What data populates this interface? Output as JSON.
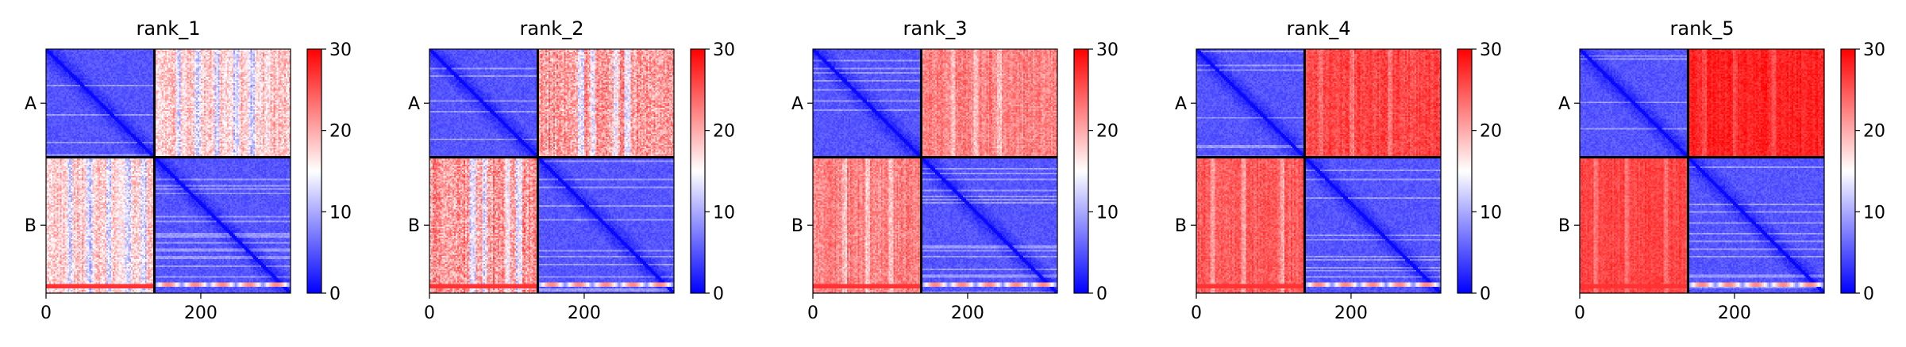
{
  "chart_data": {
    "type": "heatmap",
    "description_colormap": "bwr",
    "colormap": [
      "#0000ff",
      "#ffffff",
      "#ff0000"
    ],
    "color_range": [
      0,
      30
    ],
    "colorbar_ticks": [
      0,
      10,
      20,
      30
    ],
    "x_ticks": [
      0,
      200
    ],
    "x_range": [
      0,
      316
    ],
    "chain_boundary": 140,
    "chain_labels": [
      "A",
      "B"
    ],
    "panels": [
      {
        "title": "rank_1",
        "block_means": {
          "A_A": 4,
          "A_B": 18,
          "B_A": 18,
          "B_B": 4
        },
        "variation": 3.5,
        "columns_low": [
          30,
          55,
          80,
          105,
          125
        ]
      },
      {
        "title": "rank_2",
        "block_means": {
          "A_A": 4,
          "A_B": 21,
          "B_A": 21,
          "B_B": 4
        },
        "variation": 4,
        "columns_low": [
          55,
          70,
          100,
          115
        ]
      },
      {
        "title": "rank_3",
        "block_means": {
          "A_A": 4,
          "A_B": 22.5,
          "B_A": 22.5,
          "B_B": 4
        },
        "variation": 2.5,
        "columns_low": [
          40,
          70,
          100
        ]
      },
      {
        "title": "rank_4",
        "block_means": {
          "A_A": 4,
          "A_B": 26,
          "B_A": 24.5,
          "B_B": 4
        },
        "variation": 2,
        "columns_low": [
          20,
          60,
          110
        ]
      },
      {
        "title": "rank_5",
        "block_means": {
          "A_A": 4,
          "A_B": 28,
          "B_A": 26,
          "B_B": 4
        },
        "variation": 1.5,
        "columns_low": [
          20,
          60,
          110
        ]
      }
    ]
  }
}
